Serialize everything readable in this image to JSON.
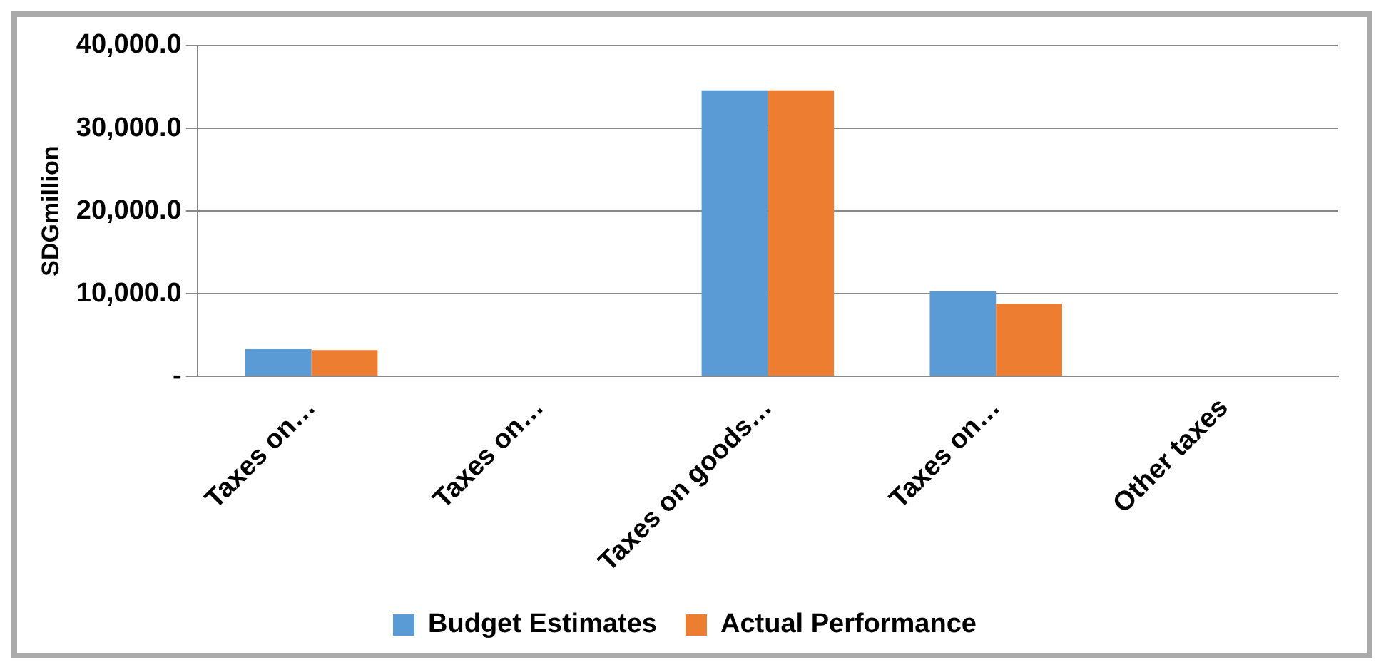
{
  "chart_data": {
    "type": "bar",
    "ylabel": "SDGmillion",
    "categories": [
      "Taxes on…",
      "Taxes on…",
      "Taxes on goods…",
      "Taxes on…",
      "Other taxes"
    ],
    "series": [
      {
        "name": "Budget Estimates",
        "color": "#5b9bd5",
        "values": [
          3300,
          0,
          34600,
          10300,
          0
        ]
      },
      {
        "name": "Actual Performance",
        "color": "#ed7d31",
        "values": [
          3200,
          0,
          34600,
          8800,
          0
        ]
      }
    ],
    "ylim": [
      0,
      40000
    ],
    "yticks": [
      {
        "value": 0,
        "label": "-"
      },
      {
        "value": 10000,
        "label": "10,000.0"
      },
      {
        "value": 20000,
        "label": "20,000.0"
      },
      {
        "value": 30000,
        "label": "30,000.0"
      },
      {
        "value": 40000,
        "label": "40,000.0"
      }
    ],
    "grid": "y",
    "legend": "bottom"
  }
}
